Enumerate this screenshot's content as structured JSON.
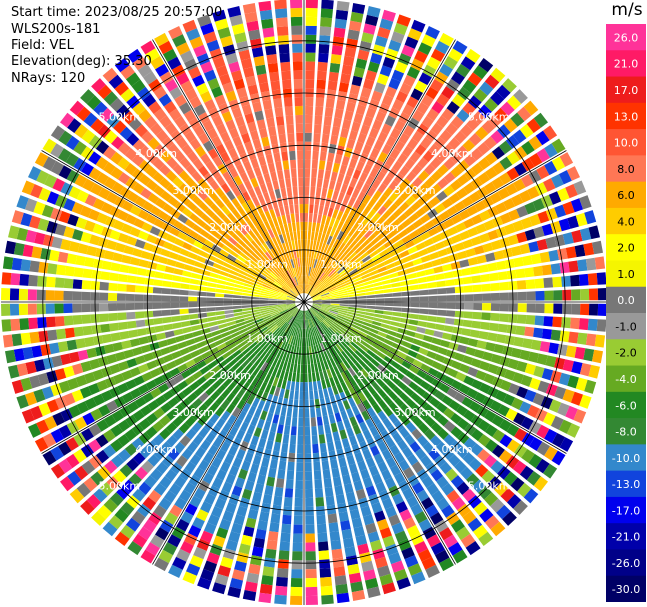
{
  "info": {
    "start_time": "Start time: 2023/08/25 20:57:00",
    "instrument": "WLS200s-181",
    "field": "Field: VEL",
    "elevation": "Elevation(deg): 35.30",
    "nrays": "NRays: 120"
  },
  "chart_data": {
    "type": "ppi",
    "field": "VEL",
    "units": "m/s",
    "elevation_deg": 35.3,
    "nrays": 120,
    "range_rings_km": [
      1.0,
      2.0,
      3.0,
      4.0,
      5.0
    ],
    "range_ring_labels": [
      "1.00km",
      "2.00km",
      "3.00km",
      "4.00km",
      "5.00km"
    ],
    "azimuth_lines_deg": [
      0,
      30,
      60,
      90,
      120,
      150,
      180,
      210,
      240,
      270,
      300,
      330
    ],
    "max_range_km": 5.8,
    "colorbar": {
      "label": "m/s",
      "ticks": [
        "26.0",
        "21.0",
        "17.0",
        "13.0",
        "10.0",
        "8.0",
        "6.0",
        "4.0",
        "2.0",
        "1.0",
        "0.0",
        "-1.0",
        "-2.0",
        "-4.0",
        "-6.0",
        "-8.0",
        "-10.0",
        "-13.0",
        "-17.0",
        "-21.0",
        "-26.0",
        "-30.0"
      ],
      "colors": [
        "#ff3399",
        "#ff1a66",
        "#ee1c1c",
        "#ff3300",
        "#ff5533",
        "#ff7755",
        "#ffaa00",
        "#ffcc00",
        "#ffff00",
        "#f5f500",
        "#777777",
        "#999999",
        "#99cc33",
        "#66aa22",
        "#228822",
        "#338833",
        "#3388cc",
        "#1144dd",
        "#0000ee",
        "#0000aa",
        "#000088",
        "#000066"
      ]
    }
  }
}
